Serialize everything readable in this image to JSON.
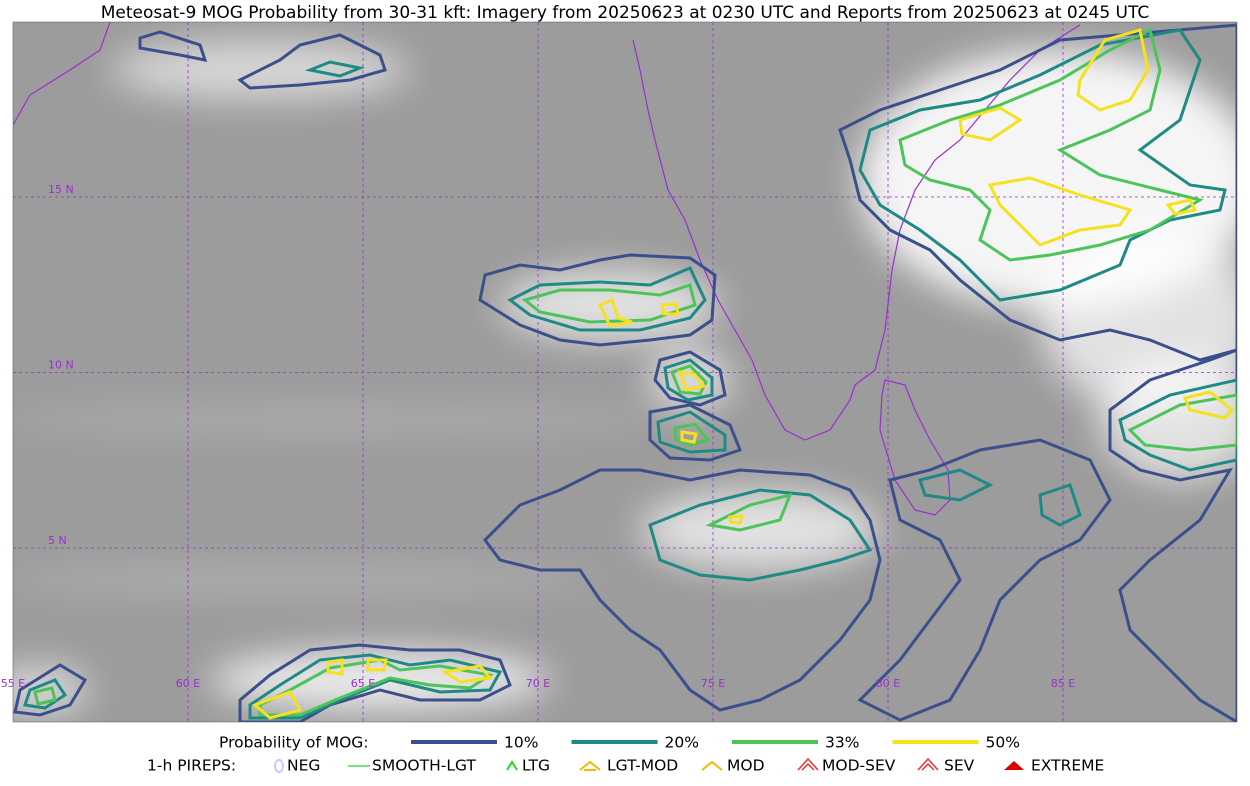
{
  "title": "Meteosat-9 MOG Probability from 30-31 kft: Imagery from 20250623 at 0230 UTC and Reports from 20250623 at 0245 UTC",
  "map": {
    "lon_labels": [
      "55 E",
      "60 E",
      "65 E",
      "70 E",
      "75 E",
      "80 E",
      "85 E"
    ],
    "lat_labels": [
      "15 N",
      "10 N",
      "5 N"
    ]
  },
  "legend": {
    "probability": {
      "label": "Probability of MOG:",
      "items": [
        {
          "label": "10%",
          "color": "#3a4f8c"
        },
        {
          "label": "20%",
          "color": "#1f8a85"
        },
        {
          "label": "33%",
          "color": "#4cc45a"
        },
        {
          "label": "50%",
          "color": "#f5e11e"
        }
      ]
    },
    "pireps": {
      "label": "1-h PIREPS:",
      "items": [
        "NEG",
        "SMOOTH-LGT",
        "LTG",
        "LGT-MOD",
        "MOD",
        "MOD-SEV",
        "SEV",
        "EXTREME"
      ]
    }
  }
}
